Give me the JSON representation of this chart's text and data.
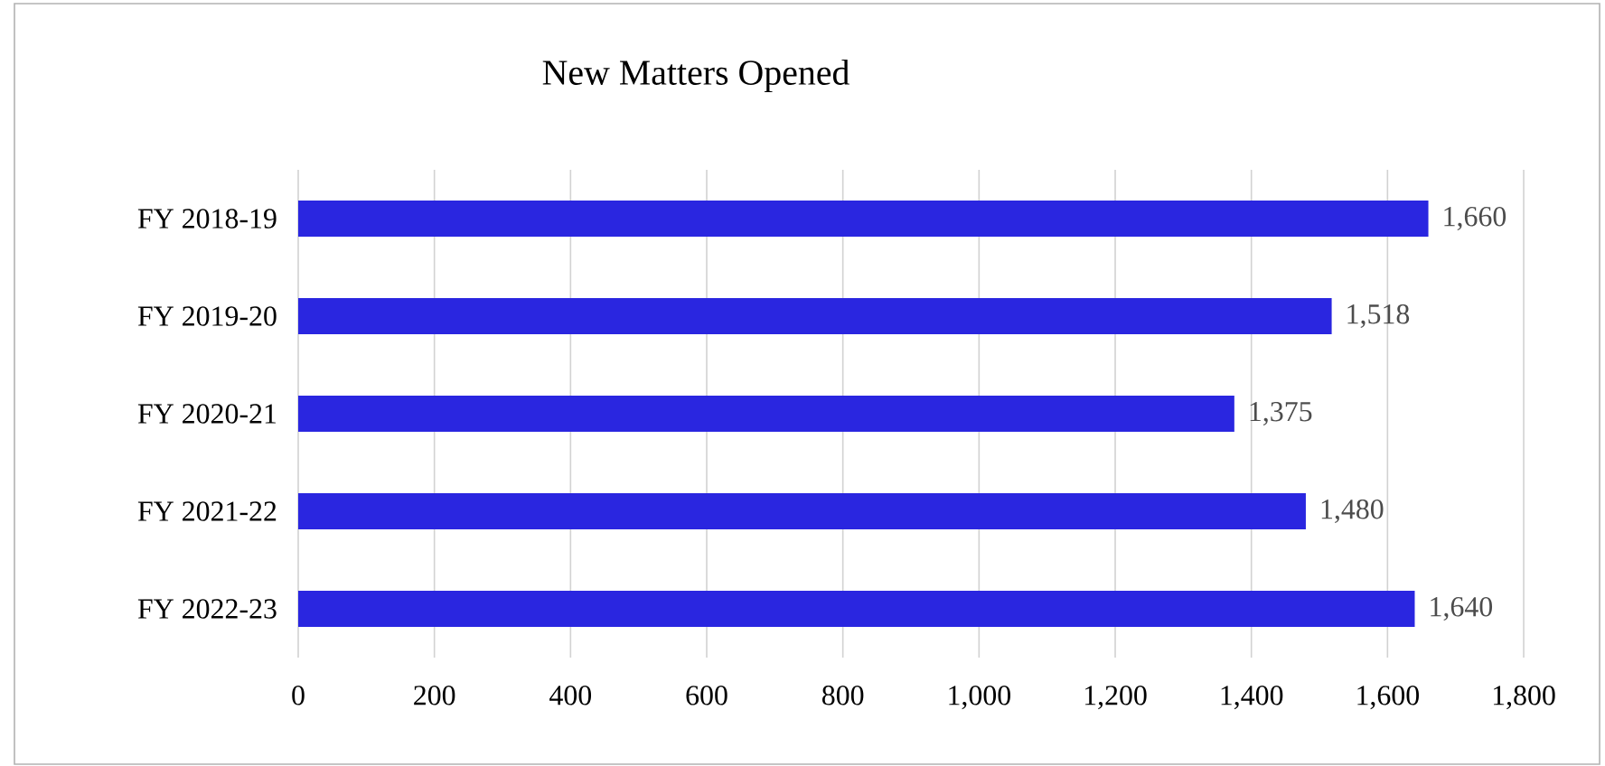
{
  "chart_data": {
    "type": "bar",
    "orientation": "horizontal",
    "title": "New Matters Opened",
    "categories": [
      "FY 2018-19",
      "FY 2019-20",
      "FY 2020-21",
      "FY 2021-22",
      "FY 2022-23"
    ],
    "values": [
      1660,
      1518,
      1375,
      1480,
      1640
    ],
    "value_labels": [
      "1,660",
      "1,518",
      "1,375",
      "1,480",
      "1,640"
    ],
    "color": "#2a26e0",
    "xlim": [
      0,
      1800
    ],
    "xticks": [
      0,
      200,
      400,
      {
        "value": 600,
        "label": "600"
      },
      800,
      {
        "value": 1000,
        "label": "1,000"
      },
      {
        "value": 1200,
        "label": "1,200"
      },
      {
        "value": 1400,
        "label": "1,400"
      },
      {
        "value": 1600,
        "label": "1,600"
      },
      {
        "value": 1800,
        "label": "1,800"
      }
    ],
    "grid": "x"
  }
}
